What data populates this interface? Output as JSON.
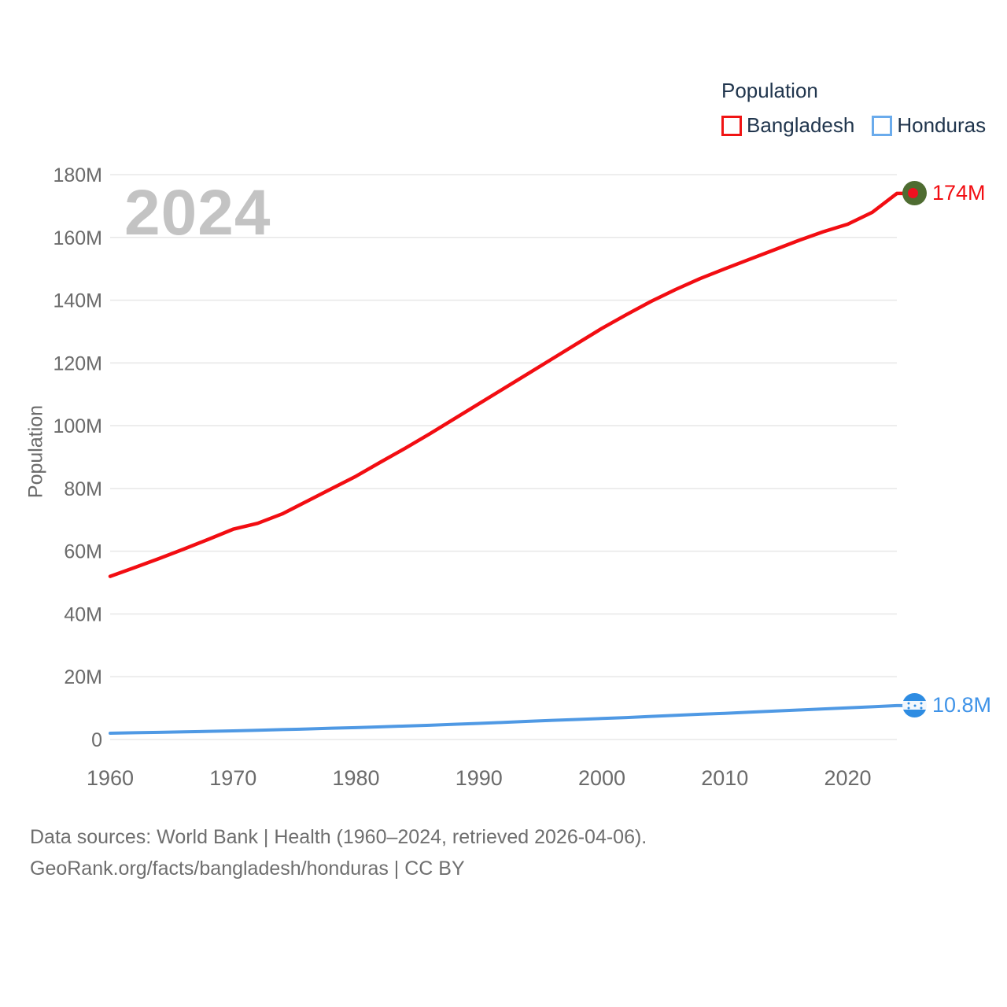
{
  "watermark": "2024",
  "legend": {
    "title": "Population",
    "items": [
      {
        "label": "Bangladesh",
        "swatch_color": "#f01414"
      },
      {
        "label": "Honduras",
        "swatch_color": "#6aabec"
      }
    ]
  },
  "colors": {
    "bangladesh_line": "#f20d12",
    "honduras_line": "#4f99e4",
    "bangladesh_label": "#f20d12",
    "honduras_label": "#3f93e8",
    "bd_flag_green": "#4e6c31",
    "bd_flag_red": "#ef1020",
    "hn_flag_blue": "#2e8ce2",
    "hn_flag_white": "#f2f7fc",
    "gridline": "#e9e9e9",
    "tick_text": "#6b6b6b",
    "legend_text": "#20354d",
    "watermark_text": "#c3c3c3",
    "footer_text": "#6e6e6e"
  },
  "chart_data": {
    "type": "line",
    "title": "Population",
    "xlabel": "",
    "ylabel": "Population",
    "grid": "horizontal-only",
    "legend_position": "top-right",
    "xlim": [
      1960,
      2024
    ],
    "ylim": [
      0,
      180000000
    ],
    "x_ticks": [
      1960,
      1970,
      1980,
      1990,
      2000,
      2010,
      2020
    ],
    "y_ticks": [
      {
        "value": 0,
        "label": "0"
      },
      {
        "value": 20,
        "label": "20M"
      },
      {
        "value": 40,
        "label": "40M"
      },
      {
        "value": 60,
        "label": "60M"
      },
      {
        "value": 80,
        "label": "80M"
      },
      {
        "value": 100,
        "label": "100M"
      },
      {
        "value": 120,
        "label": "120M"
      },
      {
        "value": 140,
        "label": "140M"
      },
      {
        "value": 160,
        "label": "160M"
      },
      {
        "value": 180,
        "label": "180M"
      }
    ],
    "unit": "millions",
    "x": [
      1960,
      1962,
      1964,
      1966,
      1968,
      1970,
      1972,
      1974,
      1976,
      1978,
      1980,
      1982,
      1984,
      1986,
      1988,
      1990,
      1992,
      1994,
      1996,
      1998,
      2000,
      2002,
      2004,
      2006,
      2008,
      2010,
      2012,
      2014,
      2016,
      2018,
      2020,
      2022,
      2024
    ],
    "series": [
      {
        "name": "Bangladesh",
        "end_label": "174M",
        "flag_icon": "bangladesh-flag-icon",
        "values_millions": [
          52.0,
          54.8,
          57.7,
          60.7,
          63.8,
          67.0,
          68.9,
          71.9,
          75.9,
          79.9,
          83.9,
          88.4,
          92.8,
          97.4,
          102.2,
          107.0,
          111.8,
          116.6,
          121.4,
          126.2,
          131.0,
          135.4,
          139.6,
          143.4,
          146.9,
          150.0,
          153.0,
          156.0,
          159.0,
          161.8,
          164.2,
          168.0,
          174.0
        ]
      },
      {
        "name": "Honduras",
        "end_label": "10.8M",
        "flag_icon": "honduras-flag-icon",
        "values_millions": [
          2.0,
          2.15,
          2.3,
          2.45,
          2.6,
          2.75,
          2.95,
          3.15,
          3.35,
          3.6,
          3.8,
          4.05,
          4.3,
          4.55,
          4.85,
          5.15,
          5.45,
          5.8,
          6.1,
          6.4,
          6.7,
          7.0,
          7.35,
          7.7,
          8.05,
          8.35,
          8.7,
          9.05,
          9.4,
          9.75,
          10.1,
          10.45,
          10.8
        ]
      }
    ]
  },
  "footer": {
    "line1": "Data sources: World Bank | Health (1960–2024, retrieved 2026-04-06).",
    "line2": "GeoRank.org/facts/bangladesh/honduras | CC BY"
  }
}
